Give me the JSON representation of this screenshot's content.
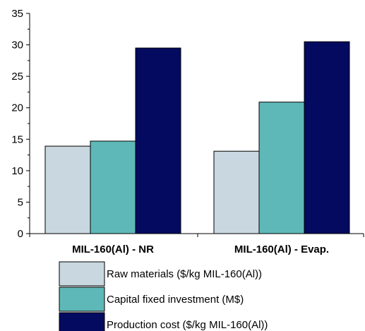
{
  "chart_data": {
    "type": "bar",
    "categories": [
      "MIL-160(Al) - NR",
      "MIL-160(Al) - Evap."
    ],
    "series": [
      {
        "name": "Raw materials ($/kg MIL-160(Al))",
        "values": [
          13.9,
          13.1
        ],
        "color": "#c8d7e0"
      },
      {
        "name": "Capital fixed investment (M$)",
        "values": [
          14.7,
          20.9
        ],
        "color": "#5fb8b8"
      },
      {
        "name": "Production cost ($/kg MIL-160(Al))",
        "values": [
          29.5,
          30.5
        ],
        "color": "#030a5f"
      }
    ],
    "title": "",
    "xlabel": "",
    "ylabel": "",
    "ylim": [
      0,
      35
    ],
    "yticks": [
      0,
      5,
      10,
      15,
      20,
      25,
      30,
      35
    ],
    "grid": false,
    "legend_position": "bottom"
  }
}
